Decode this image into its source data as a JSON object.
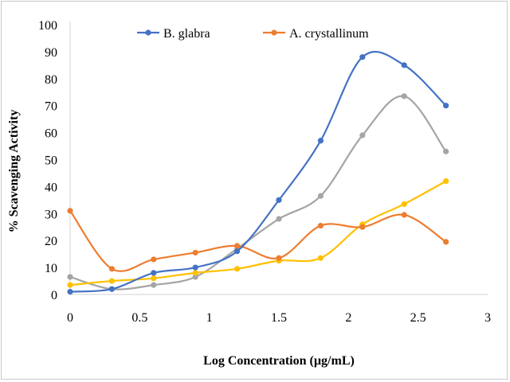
{
  "chart_data": {
    "type": "line",
    "title": "",
    "xlabel": "Log Concentration (µg/mL)",
    "ylabel": "% Scavenging Activity",
    "xlim": [
      0,
      3
    ],
    "ylim": [
      0,
      100
    ],
    "x_ticks": [
      0,
      0.5,
      1,
      1.5,
      2,
      2.5,
      3
    ],
    "x_tick_labels": [
      "0",
      "0.5",
      "1",
      "1.5",
      "2",
      "2.5",
      "3"
    ],
    "y_ticks": [
      0,
      10,
      20,
      30,
      40,
      50,
      60,
      70,
      80,
      90,
      100
    ],
    "y_tick_labels": [
      "0",
      "10",
      "20",
      "30",
      "40",
      "50",
      "60",
      "70",
      "80",
      "90",
      "100"
    ],
    "grid": false,
    "smooth": true,
    "legend_position": "top",
    "series": [
      {
        "name": "B. glabra",
        "color": "#4472C4",
        "x": [
          0,
          0.3,
          0.6,
          0.9,
          1.2,
          1.5,
          1.8,
          2.1,
          2.4,
          2.7
        ],
        "values": [
          1,
          2,
          8,
          10,
          16,
          35,
          57,
          88,
          85,
          70
        ]
      },
      {
        "name": "A. crystallinum",
        "color": "#ED7D31",
        "x": [
          0,
          0.3,
          0.6,
          0.9,
          1.2,
          1.5,
          1.8,
          2.1,
          2.4,
          2.7
        ],
        "values": [
          31,
          9.5,
          13,
          15.5,
          18,
          13.5,
          25.5,
          25,
          29.5,
          19.5
        ]
      },
      {
        "color": "#A5A5A5",
        "x": [
          0,
          0.3,
          0.6,
          0.9,
          1.2,
          1.5,
          1.8,
          2.1,
          2.4,
          2.7
        ],
        "values": [
          6.5,
          2,
          3.5,
          6.5,
          17,
          28,
          36.5,
          59,
          73.5,
          53
        ]
      },
      {
        "color": "#FFC000",
        "x": [
          0,
          0.3,
          0.6,
          0.9,
          1.2,
          1.5,
          1.8,
          2.1,
          2.4,
          2.7
        ],
        "values": [
          3.5,
          5,
          6,
          8,
          9.5,
          12.5,
          13.5,
          26,
          33.5,
          42
        ]
      }
    ]
  }
}
